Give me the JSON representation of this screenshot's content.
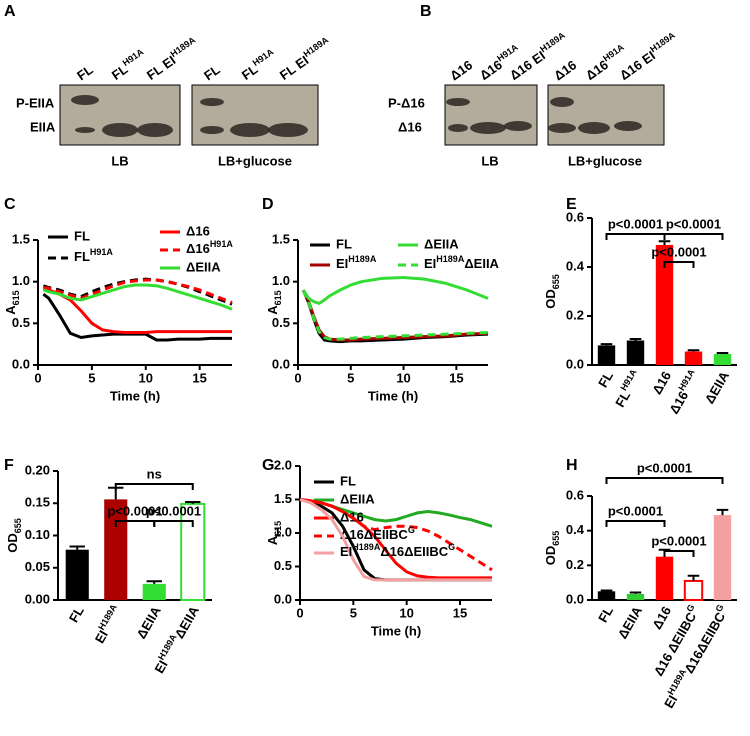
{
  "blots": [
    {
      "panel": "A",
      "lanes": [
        "FL",
        [
          "FL",
          "H91A"
        ],
        [
          "FL EI",
          "H189A"
        ],
        "FL",
        [
          "FL",
          "H91A"
        ],
        [
          "FL EI",
          "H189A"
        ]
      ],
      "rows": [
        "P-EIIA",
        "EIIA"
      ],
      "conditions": [
        "LB",
        "LB+glucose"
      ]
    },
    {
      "panel": "B",
      "lanes": [
        "Δ16",
        [
          "Δ16",
          "H91A"
        ],
        [
          "Δ16 EI",
          "H189A"
        ],
        "Δ16",
        [
          "Δ16",
          "H91A"
        ],
        [
          "Δ16 EI",
          "H189A"
        ]
      ],
      "rows": [
        "P-Δ16",
        "Δ16"
      ],
      "conditions": [
        "LB",
        "LB+glucose"
      ]
    }
  ],
  "chart_data": [
    {
      "type": "line",
      "panel": "C",
      "xlabel": "Time (h)",
      "ylabel": [
        "A",
        "615"
      ],
      "x": [
        0.5,
        1,
        2,
        3,
        4,
        5,
        6,
        7,
        8,
        9,
        10,
        11,
        12,
        13,
        14,
        15,
        16,
        17,
        18
      ],
      "xlim": [
        0,
        18
      ],
      "xticks": [
        0,
        5,
        10,
        15
      ],
      "ylim": [
        0,
        1.5
      ],
      "yticks": [
        {
          "value": 0,
          "label": "0.0"
        },
        0.5,
        {
          "value": 1,
          "label": "1.0"
        },
        1.5
      ],
      "series": [
        {
          "name": "FL",
          "color": "#000000",
          "dashed": false,
          "values": [
            0.85,
            0.8,
            0.6,
            0.38,
            0.33,
            0.35,
            0.36,
            0.37,
            0.37,
            0.37,
            0.37,
            0.3,
            0.3,
            0.31,
            0.31,
            0.31,
            0.32,
            0.32,
            0.32
          ]
        },
        {
          "name": [
            "FL",
            "H91A"
          ],
          "color": "#000000",
          "dashed": true,
          "values": [
            0.95,
            0.93,
            0.9,
            0.85,
            0.82,
            0.88,
            0.93,
            0.97,
            1.0,
            1.02,
            1.03,
            1.02,
            1.0,
            0.97,
            0.93,
            0.88,
            0.83,
            0.78,
            0.73
          ]
        },
        {
          "name": "Δ16",
          "color": "#ff0000",
          "dashed": false,
          "values": [
            0.92,
            0.9,
            0.85,
            0.78,
            0.65,
            0.5,
            0.42,
            0.4,
            0.39,
            0.39,
            0.39,
            0.4,
            0.4,
            0.4,
            0.4,
            0.4,
            0.4,
            0.4,
            0.4
          ]
        },
        {
          "name": [
            "Δ16",
            "H91A"
          ],
          "color": "#ff0000",
          "dashed": true,
          "values": [
            0.93,
            0.92,
            0.88,
            0.84,
            0.8,
            0.85,
            0.9,
            0.95,
            0.99,
            1.01,
            1.02,
            1.02,
            1.0,
            0.97,
            0.94,
            0.9,
            0.85,
            0.8,
            0.75
          ]
        },
        {
          "name": "ΔEIIA",
          "color": "#33dd33",
          "dashed": false,
          "values": [
            0.9,
            0.88,
            0.85,
            0.8,
            0.78,
            0.82,
            0.86,
            0.9,
            0.94,
            0.96,
            0.96,
            0.95,
            0.92,
            0.88,
            0.84,
            0.8,
            0.76,
            0.72,
            0.67
          ]
        }
      ]
    },
    {
      "type": "line",
      "panel": "D",
      "xlabel": "Time (h)",
      "ylabel": [
        "A",
        "615"
      ],
      "x": [
        0.5,
        1,
        1.5,
        2,
        2.5,
        3,
        4,
        5,
        6,
        8,
        10,
        12,
        14,
        16,
        18
      ],
      "xlim": [
        0,
        18
      ],
      "xticks": [
        0,
        5,
        10,
        15
      ],
      "ylim": [
        0,
        1.5
      ],
      "yticks": [
        {
          "value": 0,
          "label": "0.0"
        },
        0.5,
        {
          "value": 1,
          "label": "1.0"
        },
        1.5
      ],
      "series": [
        {
          "name": "FL",
          "color": "#000000",
          "dashed": false,
          "values": [
            0.9,
            0.75,
            0.55,
            0.38,
            0.3,
            0.29,
            0.28,
            0.29,
            0.29,
            0.3,
            0.31,
            0.33,
            0.34,
            0.36,
            0.37
          ]
        },
        {
          "name": [
            "EI",
            "H189A"
          ],
          "color": "#aa0000",
          "dashed": false,
          "values": [
            0.9,
            0.77,
            0.58,
            0.42,
            0.34,
            0.31,
            0.3,
            0.3,
            0.31,
            0.32,
            0.33,
            0.34,
            0.35,
            0.37,
            0.38
          ]
        },
        {
          "name": "ΔEIIA",
          "color": "#33dd33",
          "dashed": false,
          "values": [
            0.9,
            0.8,
            0.76,
            0.74,
            0.78,
            0.83,
            0.9,
            0.96,
            1.0,
            1.04,
            1.05,
            1.03,
            0.98,
            0.9,
            0.8
          ]
        },
        {
          "name": [
            "EI",
            "H189A",
            "ΔEIIA"
          ],
          "color": "#33dd33",
          "dashed": true,
          "values": [
            0.9,
            0.76,
            0.56,
            0.4,
            0.33,
            0.31,
            0.31,
            0.32,
            0.33,
            0.34,
            0.35,
            0.36,
            0.37,
            0.38,
            0.39
          ]
        }
      ]
    },
    {
      "type": "bar",
      "panel": "E",
      "ylabel": [
        "OD",
        "655"
      ],
      "categories": [
        "FL",
        [
          "FL",
          "H91A"
        ],
        "Δ16",
        [
          "Δ16",
          "H91A"
        ],
        "ΔEIIA"
      ],
      "values": [
        0.08,
        0.1,
        0.49,
        0.055,
        0.045
      ],
      "errors": [
        0.005,
        0.006,
        0.015,
        0.005,
        0.004
      ],
      "colors": [
        "#000000",
        "#000000",
        "#ff0000",
        "#ff0000",
        "#33dd33"
      ],
      "hollow": [
        false,
        false,
        false,
        false,
        false
      ],
      "ylim": [
        0,
        0.6
      ],
      "yticks": [
        {
          "value": 0,
          "label": "0.0"
        },
        0.2,
        0.4,
        0.6
      ],
      "annotations": [
        "p<0.0001",
        "p<0.0001",
        "p<0.0001"
      ]
    },
    {
      "type": "bar",
      "panel": "F",
      "ylabel": [
        "OD",
        "655"
      ],
      "categories": [
        "FL",
        [
          "EI",
          "H189A"
        ],
        "ΔEIIA",
        [
          "EI",
          "H189A",
          "ΔEIIA"
        ]
      ],
      "values": [
        0.078,
        0.156,
        0.025,
        0.149
      ],
      "errors": [
        0.005,
        0.018,
        0.004,
        0.003
      ],
      "colors": [
        "#000000",
        "#aa0000",
        "#33dd33",
        "#33dd33"
      ],
      "hollow": [
        false,
        false,
        false,
        true
      ],
      "ylim": [
        0,
        0.2
      ],
      "yticks": [
        {
          "value": 0,
          "label": "0.00"
        },
        0.05,
        {
          "value": 0.1,
          "label": "0.10"
        },
        0.15,
        {
          "value": 0.2,
          "label": "0.20"
        }
      ],
      "annotations": [
        "ns",
        "p<0.0001",
        "p<0.0001"
      ]
    },
    {
      "type": "line",
      "panel": "G",
      "xlabel": "Time (h)",
      "ylabel": [
        "A",
        "615"
      ],
      "x": [
        0,
        1,
        2,
        3,
        4,
        5,
        6,
        7,
        8,
        9,
        10,
        11,
        12,
        13,
        14,
        15,
        16,
        17,
        18
      ],
      "xlim": [
        0,
        18
      ],
      "xticks": [
        0,
        5,
        10,
        15
      ],
      "ylim": [
        0,
        2
      ],
      "yticks": [
        {
          "value": 0,
          "label": "0.0"
        },
        0.5,
        {
          "value": 1,
          "label": "1.0"
        },
        1.5,
        {
          "value": 2,
          "label": "2.0"
        }
      ],
      "series": [
        {
          "name": "FL",
          "color": "#000000",
          "dashed": false,
          "values": [
            1.5,
            1.47,
            1.4,
            1.3,
            1.1,
            0.8,
            0.45,
            0.32,
            0.3,
            0.3,
            0.3,
            0.3,
            0.3,
            0.3,
            0.3,
            0.3,
            0.3,
            0.3,
            0.3
          ]
        },
        {
          "name": "ΔEIIA",
          "color": "#22aa22",
          "dashed": false,
          "values": [
            1.5,
            1.48,
            1.45,
            1.4,
            1.35,
            1.3,
            1.25,
            1.2,
            1.18,
            1.2,
            1.25,
            1.3,
            1.32,
            1.3,
            1.27,
            1.23,
            1.2,
            1.15,
            1.1
          ]
        },
        {
          "name": "Δ16",
          "color": "#ff0000",
          "dashed": false,
          "values": [
            1.5,
            1.48,
            1.45,
            1.4,
            1.32,
            1.22,
            1.1,
            0.95,
            0.75,
            0.55,
            0.42,
            0.36,
            0.34,
            0.33,
            0.33,
            0.33,
            0.33,
            0.33,
            0.33
          ]
        },
        {
          "name": [
            "Δ16ΔEIIBC",
            "G"
          ],
          "color": "#ff0000",
          "dashed": true,
          "values": [
            1.5,
            1.48,
            1.45,
            1.4,
            1.32,
            1.22,
            1.1,
            1.05,
            1.08,
            1.1,
            1.1,
            1.08,
            1.03,
            0.95,
            0.85,
            0.75,
            0.65,
            0.55,
            0.45
          ]
        },
        {
          "name": [
            "EI",
            "H189A",
            "Δ16ΔEIIBC",
            "G"
          ],
          "color": "#f4a0a0",
          "dashed": false,
          "values": [
            1.5,
            1.45,
            1.35,
            1.2,
            0.95,
            0.6,
            0.35,
            0.3,
            0.3,
            0.3,
            0.3,
            0.3,
            0.3,
            0.3,
            0.3,
            0.3,
            0.3,
            0.3,
            0.3
          ]
        }
      ]
    },
    {
      "type": "bar",
      "panel": "H",
      "ylabel": [
        "OD",
        "655"
      ],
      "categories": [
        "FL",
        "ΔEIIA",
        "Δ16",
        [
          "Δ16 ΔEIIBC",
          "G"
        ],
        [
          "EI",
          "H189A",
          "Δ16ΔEIIBC",
          "G"
        ]
      ],
      "values": [
        0.05,
        0.035,
        0.25,
        0.11,
        0.49
      ],
      "errors": [
        0.005,
        0.008,
        0.04,
        0.03,
        0.03
      ],
      "colors": [
        "#000000",
        "#33cc33",
        "#ff0000",
        "#ff0000",
        "#f4a0a0"
      ],
      "hollow": [
        false,
        false,
        false,
        true,
        false
      ],
      "ylim": [
        0,
        0.6
      ],
      "yticks": [
        {
          "value": 0,
          "label": "0.0"
        },
        0.2,
        0.4,
        0.6
      ],
      "annotations": [
        "p<0.0001",
        "p<0.0001",
        "p<0.0001"
      ]
    }
  ]
}
